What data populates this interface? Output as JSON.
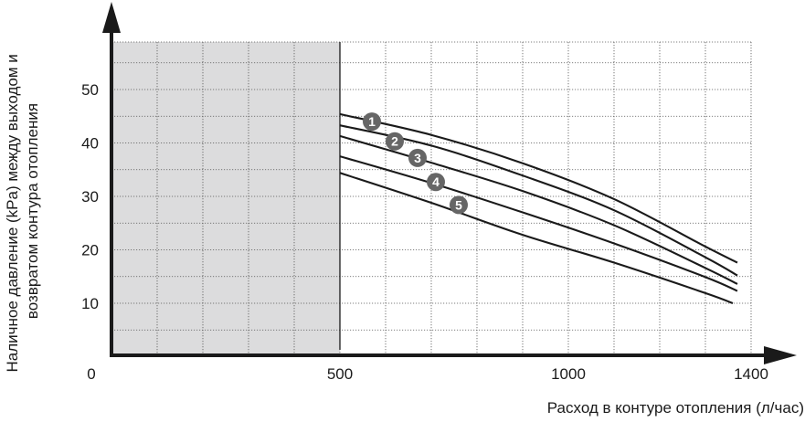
{
  "chart_data": {
    "type": "line",
    "xlabel": "Расход в контуре отопления  (л/час)",
    "ylabel": [
      "Наличное давление (kPa) между выходом и",
      "возвратом контура отопления"
    ],
    "xlim": [
      0,
      1450
    ],
    "ylim": [
      0,
      58
    ],
    "x_ticks": [
      {
        "value": 0,
        "label": "0"
      },
      {
        "value": 500,
        "label": "500"
      },
      {
        "value": 1000,
        "label": "1000"
      },
      {
        "value": 1400,
        "label": "1400"
      }
    ],
    "y_ticks": [
      {
        "value": 10,
        "label": "10"
      },
      {
        "value": 20,
        "label": "20"
      },
      {
        "value": 30,
        "label": "30"
      },
      {
        "value": 40,
        "label": "40"
      },
      {
        "value": 50,
        "label": "50"
      }
    ],
    "x_grid": [
      100,
      200,
      300,
      400,
      500,
      600,
      700,
      800,
      900,
      1000,
      1100,
      1200,
      1300,
      1400
    ],
    "y_grid": [
      5,
      10,
      15,
      20,
      25,
      30,
      35,
      40,
      45,
      50,
      55
    ],
    "shaded_region": {
      "x_from": 0,
      "x_to": 500,
      "color": "#dcdcdd"
    },
    "grid": true,
    "series": [
      {
        "name": "1",
        "x": [
          500,
          700,
          900,
          1100,
          1300,
          1370
        ],
        "y": [
          45.4,
          41.5,
          36.2,
          29.5,
          20.6,
          17.6
        ],
        "label_at": [
          570,
          44.0
        ]
      },
      {
        "name": "2",
        "x": [
          500,
          700,
          900,
          1100,
          1300,
          1370
        ],
        "y": [
          43.3,
          39.5,
          33.9,
          27.4,
          18.6,
          15.2
        ],
        "label_at": [
          620,
          40.3
        ]
      },
      {
        "name": "3",
        "x": [
          500,
          700,
          900,
          1100,
          1300,
          1370
        ],
        "y": [
          41.3,
          36.3,
          31.0,
          24.6,
          16.6,
          13.6
        ],
        "label_at": [
          670,
          37.2
        ]
      },
      {
        "name": "4",
        "x": [
          500,
          700,
          900,
          1100,
          1300,
          1370
        ],
        "y": [
          37.5,
          32.5,
          27.0,
          21.2,
          14.9,
          12.3
        ],
        "label_at": [
          710,
          32.7
        ]
      },
      {
        "name": "5",
        "x": [
          500,
          700,
          900,
          1100,
          1300,
          1360
        ],
        "y": [
          34.4,
          28.8,
          22.8,
          17.6,
          11.9,
          10.0
        ],
        "label_at": [
          760,
          28.4
        ]
      }
    ],
    "colors": {
      "curve": "#1a1a1a",
      "marker": "#666666",
      "axis": "#1a1a1a",
      "grid": "#555555"
    }
  }
}
